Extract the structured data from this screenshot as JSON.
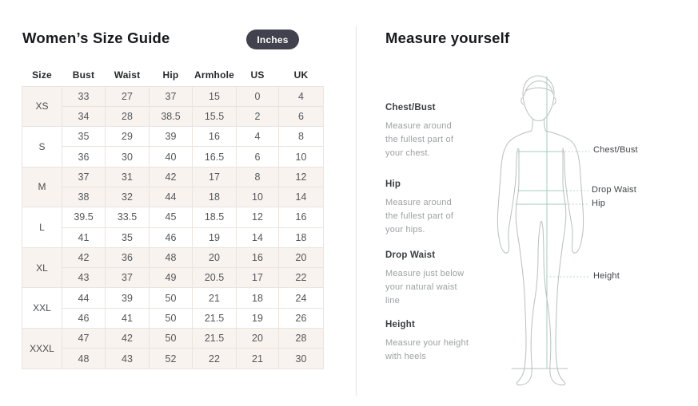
{
  "left_panel": {
    "title": "Women’s Size Guide",
    "unit_label": "Inches",
    "table": {
      "headers": [
        "Size",
        "Bust",
        "Waist",
        "Hip",
        "Armhole",
        "US",
        "UK"
      ],
      "groups": [
        {
          "size": "XS",
          "rows": [
            [
              "33",
              "27",
              "37",
              "15",
              "0",
              "4"
            ],
            [
              "34",
              "28",
              "38.5",
              "15.5",
              "2",
              "6"
            ]
          ]
        },
        {
          "size": "S",
          "rows": [
            [
              "35",
              "29",
              "39",
              "16",
              "4",
              "8"
            ],
            [
              "36",
              "30",
              "40",
              "16.5",
              "6",
              "10"
            ]
          ]
        },
        {
          "size": "M",
          "rows": [
            [
              "37",
              "31",
              "42",
              "17",
              "8",
              "12"
            ],
            [
              "38",
              "32",
              "44",
              "18",
              "10",
              "14"
            ]
          ]
        },
        {
          "size": "L",
          "rows": [
            [
              "39.5",
              "33.5",
              "45",
              "18.5",
              "12",
              "16"
            ],
            [
              "41",
              "35",
              "46",
              "19",
              "14",
              "18"
            ]
          ]
        },
        {
          "size": "XL",
          "rows": [
            [
              "42",
              "36",
              "48",
              "20",
              "16",
              "20"
            ],
            [
              "43",
              "37",
              "49",
              "20.5",
              "17",
              "22"
            ]
          ]
        },
        {
          "size": "XXL",
          "rows": [
            [
              "44",
              "39",
              "50",
              "21",
              "18",
              "24"
            ],
            [
              "46",
              "41",
              "50",
              "21.5",
              "19",
              "26"
            ]
          ]
        },
        {
          "size": "XXXL",
          "rows": [
            [
              "47",
              "42",
              "50",
              "21.5",
              "20",
              "28"
            ],
            [
              "48",
              "43",
              "52",
              "22",
              "21",
              "30"
            ]
          ]
        }
      ]
    }
  },
  "right_panel": {
    "title": "Measure yourself",
    "instructions": [
      {
        "label": "Chest/Bust",
        "text": "Measure around\nthe fullest part of\nyour chest."
      },
      {
        "label": "Hip",
        "text": "Measure around\nthe fullest part of\nyour hips."
      },
      {
        "label": "Drop Waist",
        "text": "Measure just below\nyour natural waist\nline"
      },
      {
        "label": "Height",
        "text": "Measure your height\nwith heels"
      }
    ],
    "diagram_labels": {
      "chest": "Chest/Bust",
      "drop_waist": "Drop Waist",
      "hip": "Hip",
      "height": "Height"
    }
  },
  "colors": {
    "accent_teal": "#a5cdc2",
    "figure_outline": "#b9bfbf",
    "button_bg": "#41424e",
    "button_text": "#ffffff",
    "row_cream": "#f8f3ef",
    "table_border": "#eae4df"
  }
}
